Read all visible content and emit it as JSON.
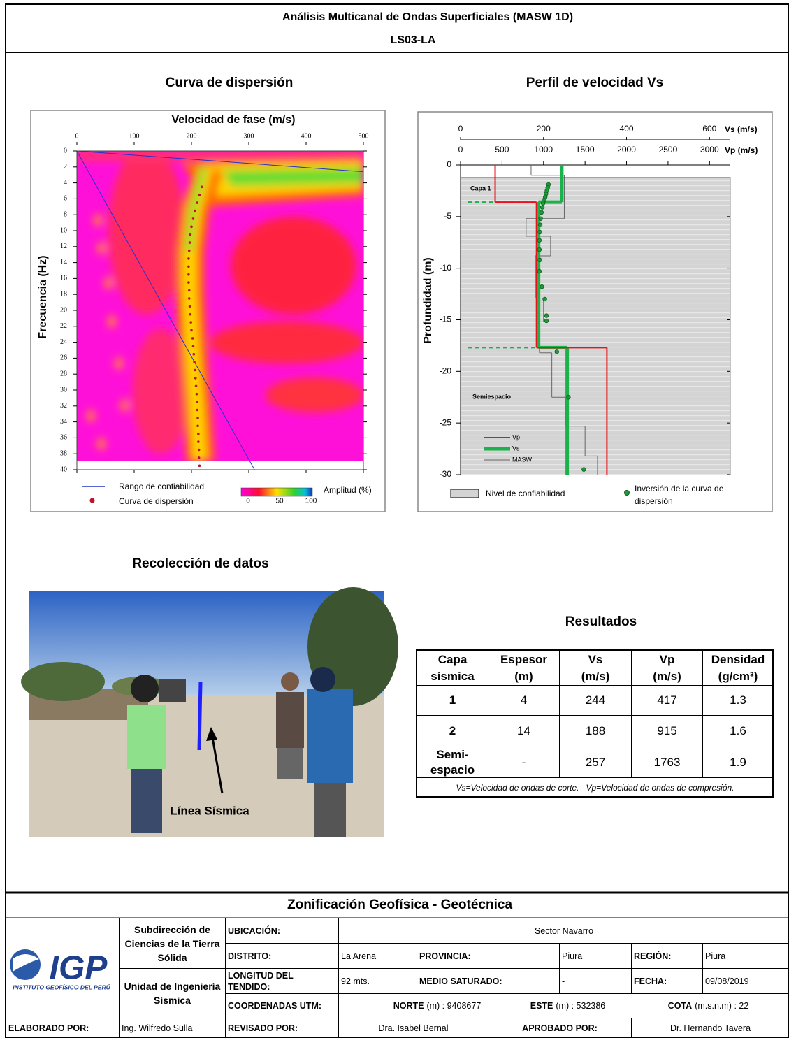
{
  "header": {
    "title": "Análisis Multicanal de Ondas Superficiales (MASW 1D)",
    "code": "LS03-LA"
  },
  "sections": {
    "dispersion": "Curva de dispersión",
    "profile": "Perfil de velocidad Vs",
    "photo": "Recolección de datos",
    "results": "Resultados"
  },
  "chart_data": [
    {
      "type": "dispersion",
      "x_label": "Velocidad de fase (m/s)",
      "y_label": "Frecuencia (Hz)",
      "xlim": [
        0,
        500
      ],
      "xticks": [
        0,
        100,
        200,
        300,
        400,
        500
      ],
      "ylim": [
        0,
        40
      ],
      "yticks": [
        0,
        2,
        4,
        6,
        8,
        10,
        12,
        14,
        16,
        18,
        20,
        22,
        24,
        26,
        28,
        30,
        32,
        34,
        36,
        38,
        40
      ],
      "confidence_range": {
        "name": "Rango de confiabilidad",
        "color": "#2233cc",
        "lines": [
          {
            "x": [
              0,
              500
            ],
            "y": [
              0,
              2.6
            ]
          },
          {
            "x": [
              0,
              310
            ],
            "y": [
              0,
              40
            ]
          }
        ]
      },
      "dispersion_curve": {
        "name": "Curva de dispersión",
        "color": "#c0102a",
        "x": [
          218,
          214,
          210,
          206,
          203,
          200,
          198,
          197,
          196,
          195,
          195,
          195,
          195,
          196,
          196,
          197,
          198,
          199,
          200,
          202,
          203,
          204,
          205,
          206,
          207,
          208,
          209,
          210,
          210,
          211,
          211,
          212,
          212,
          213,
          213,
          214
        ],
        "y": [
          4.5,
          5.5,
          6.5,
          7.5,
          8.5,
          9.5,
          10.5,
          11.5,
          12.5,
          13.5,
          14.5,
          15.5,
          16.5,
          17.5,
          18.5,
          19.5,
          20.5,
          21.5,
          22.5,
          23.5,
          24.5,
          25.5,
          26.5,
          27.5,
          28.5,
          29.5,
          30.5,
          31.5,
          32.5,
          33.5,
          34.5,
          35.5,
          36.5,
          37.5,
          38.5,
          39.5
        ]
      },
      "colorbar": {
        "label": "Amplitud (%)",
        "ticks": [
          0,
          50,
          100
        ]
      }
    },
    {
      "type": "velocity_profile",
      "y_label": "Profundidad (m)",
      "ylim": [
        0,
        -30
      ],
      "yticks": [
        0,
        -5,
        -10,
        -15,
        -20,
        -25,
        -30
      ],
      "x_axes": {
        "vs": {
          "label": "Vs (m/s)",
          "xlim": [
            0,
            650
          ],
          "xticks": [
            0,
            200,
            400,
            600
          ]
        },
        "vp": {
          "label": "Vp (m/s)",
          "xlim": [
            0,
            3250
          ],
          "xticks": [
            0,
            500,
            1000,
            1500,
            2000,
            2500,
            3000
          ]
        }
      },
      "confidence_top": -1.2,
      "confidence_label": "Nivel de confiabilidad",
      "series": [
        {
          "name": "Vp",
          "color": "#e8141b",
          "axis": "vp",
          "depths": [
            0,
            -3.6,
            -17.7,
            -30
          ],
          "values": [
            417,
            915,
            1763
          ]
        },
        {
          "name": "Vs",
          "color": "#19b24b",
          "axis": "vs",
          "boundary_lines": true,
          "depths": [
            0,
            -3.6,
            -17.7,
            -30
          ],
          "values": [
            244,
            188,
            257
          ]
        },
        {
          "name": "MASW",
          "color": "#666666",
          "axis": "vs",
          "depths": [
            0,
            -1,
            -5.2,
            -6.9,
            -8.8,
            -12.9,
            -15.2,
            -18.2,
            -22.5,
            -25.3,
            -28.2,
            -30
          ],
          "values": [
            170,
            250,
            158,
            217,
            180,
            200,
            190,
            220,
            253,
            300,
            330
          ]
        }
      ],
      "inversion": {
        "name": "Inversión de la curva de dispersión",
        "color": "#1f9a3a",
        "x": [
          212,
          210,
          208,
          206,
          204,
          201,
          199,
          197,
          195,
          193,
          192,
          191,
          190,
          190,
          191,
          190,
          196,
          203,
          207,
          207,
          232,
          260,
          297
        ],
        "y": [
          -1.9,
          -2.2,
          -2.5,
          -2.8,
          -3.1,
          -3.4,
          -3.7,
          -4.1,
          -4.6,
          -5.2,
          -5.8,
          -6.5,
          -7.3,
          -8.2,
          -9.2,
          -10.3,
          -11.8,
          -13,
          -14.6,
          -15.1,
          -18.1,
          -22.5,
          -29.5
        ]
      },
      "annotations": [
        "Capa 1",
        "Semiespacio"
      ]
    }
  ],
  "photo": {
    "caption": "Línea Sísmica"
  },
  "results_table": {
    "header": [
      "Capa sísmica",
      "Espesor (m)",
      "Vs (m/s)",
      "Vp (m/s)",
      "Densidad (g/cm³)"
    ],
    "rows": [
      [
        1,
        4,
        244,
        417,
        1.3
      ],
      [
        2,
        14,
        188,
        915,
        1.6
      ],
      [
        "Semi-espacio",
        "-",
        257,
        1763,
        1.9
      ]
    ],
    "note": "Vs=Velocidad de ondas de corte.   Vp=Velocidad de ondas de compresión."
  },
  "footer": {
    "title": "Zonificación Geofísica - Geotécnica",
    "logo": "IGP",
    "institute": "INSTITUTO GEOFÍSICO DEL PERÚ",
    "subdirection": "Subdirección de Ciencias de la Tierra Sólida",
    "unit": "Unidad de Ingeniería Sísmica",
    "ubicacion": [
      "UBICACIÓN:",
      "Sector Navarro"
    ],
    "distrito": [
      "DISTRITO:",
      "La Arena"
    ],
    "provincia": [
      "PROVINCIA:",
      "Piura"
    ],
    "region": [
      "REGIÓN:",
      "Piura"
    ],
    "longitud": [
      "LONGITUD DEL TENDIDO:",
      "92 mts."
    ],
    "medio": [
      "MEDIO SATURADO:",
      "-"
    ],
    "fecha": [
      "FECHA:",
      "09/08/2019"
    ],
    "coordenadas": "COORDENADAS UTM:",
    "norte": [
      "NORTE",
      "(m) : 9408677"
    ],
    "este": [
      "ESTE",
      "(m) : 532386"
    ],
    "cota": [
      "COTA",
      "(m.s.n.m) : 22"
    ],
    "elaborado": [
      "ELABORADO POR:",
      "Ing. Wilfredo Sulla"
    ],
    "revisado": [
      "REVISADO POR:",
      "Dra. Isabel Bernal"
    ],
    "aprobado": [
      "APROBADO POR:",
      "Dr. Hernando Tavera"
    ]
  }
}
